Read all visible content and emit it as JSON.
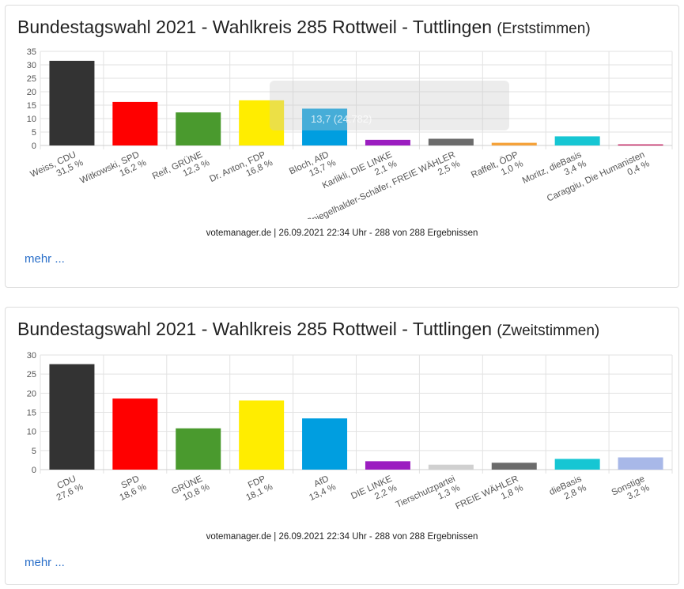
{
  "panels": [
    {
      "title_main": "Bundestagswahl 2021 - Wahlkreis 285 Rottweil - Tuttlingen",
      "title_sub": "(Erststimmen)",
      "source": "votemanager.de | 26.09.2021 22:34 Uhr - 288 von 288 Ergebnissen",
      "more": "mehr ..."
    },
    {
      "title_main": "Bundestagswahl 2021 - Wahlkreis 285 Rottweil - Tuttlingen",
      "title_sub": "(Zweitstimmen)",
      "source": "votemanager.de | 26.09.2021 22:34 Uhr - 288 von 288 Ergebnissen",
      "more": "mehr ..."
    }
  ],
  "tooltip_text": "13,7 (24.782)",
  "chart_data": [
    {
      "type": "bar",
      "ylim": [
        0,
        35
      ],
      "yticks": [
        0,
        5,
        10,
        15,
        20,
        25,
        30,
        35
      ],
      "grid": true,
      "categories": [
        "Weiss, CDU",
        "Witkowski, SPD",
        "Reif, GRÜNE",
        "Dr. Anton, FDP",
        "Bloch, AfD",
        "Karlikli, DIE LINKE",
        "Spiegelhalder-Schäfer, FREIE WÄHLER",
        "Raffelt, ÖDP",
        "Moritz, dieBasis",
        "Caraggiu, Die Humanisten"
      ],
      "percent_labels": [
        "31,5 %",
        "16,2 %",
        "12,3 %",
        "16,8 %",
        "13,7 %",
        "2,1 %",
        "2,5 %",
        "1,0 %",
        "3,4 %",
        "0,4 %"
      ],
      "values": [
        31.5,
        16.2,
        12.3,
        16.8,
        13.7,
        2.1,
        2.5,
        1.0,
        3.4,
        0.4
      ],
      "colors": [
        "#333333",
        "#ff0000",
        "#4a9a2e",
        "#ffed00",
        "#009ee0",
        "#9b1dc0",
        "#6b6b6b",
        "#f5a23a",
        "#16c6d3",
        "#c2185b"
      ]
    },
    {
      "type": "bar",
      "ylim": [
        0,
        30
      ],
      "yticks": [
        0,
        5,
        10,
        15,
        20,
        25,
        30
      ],
      "grid": true,
      "categories": [
        "CDU",
        "SPD",
        "GRÜNE",
        "FDP",
        "AfD",
        "DIE LINKE",
        "Tierschutzpartei",
        "FREIE WÄHLER",
        "dieBasis",
        "Sonstige"
      ],
      "percent_labels": [
        "27,6 %",
        "18,6 %",
        "10,8 %",
        "18,1 %",
        "13,4 %",
        "2,2 %",
        "1,3 %",
        "1,8 %",
        "2,8 %",
        "3,2 %"
      ],
      "values": [
        27.6,
        18.6,
        10.8,
        18.1,
        13.4,
        2.2,
        1.3,
        1.8,
        2.8,
        3.2
      ],
      "colors": [
        "#333333",
        "#ff0000",
        "#4a9a2e",
        "#ffed00",
        "#009ee0",
        "#9b1dc0",
        "#d0d0d0",
        "#6b6b6b",
        "#16c6d3",
        "#a8b8e8"
      ]
    }
  ]
}
